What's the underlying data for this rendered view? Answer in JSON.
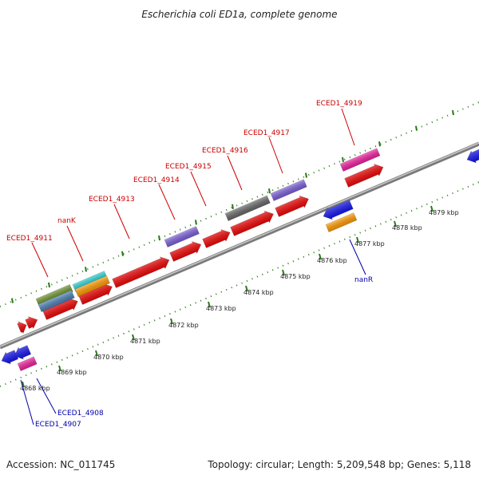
{
  "title": "Escherichia coli ED1a, complete genome",
  "footer": {
    "accession": "Accession: NC_011745",
    "topology": "Topology: circular; Length: 5,209,548 bp; Genes: 5,118"
  },
  "colors": {
    "forward_label": "#cc0000",
    "reverse_label": "#0000aa",
    "backbone": "#888888",
    "tick": "#2a7a1a"
  },
  "scale": {
    "ticks": [
      "4868 kbp",
      "4869 kbp",
      "4870 kbp",
      "4871 kbp",
      "4872 kbp",
      "4873 kbp",
      "4874 kbp",
      "4875 kbp",
      "4876 kbp",
      "4877 kbp",
      "4878 kbp",
      "4879 kbp"
    ]
  },
  "labels": {
    "forward": [
      "ECED1_4911",
      "nanK",
      "ECED1_4913",
      "ECED1_4914",
      "ECED1_4915",
      "ECED1_4916",
      "ECED1_4917",
      "ECED1_4919"
    ],
    "reverse": [
      "nanR",
      "ECED1_4908",
      "ECED1_4907"
    ]
  }
}
